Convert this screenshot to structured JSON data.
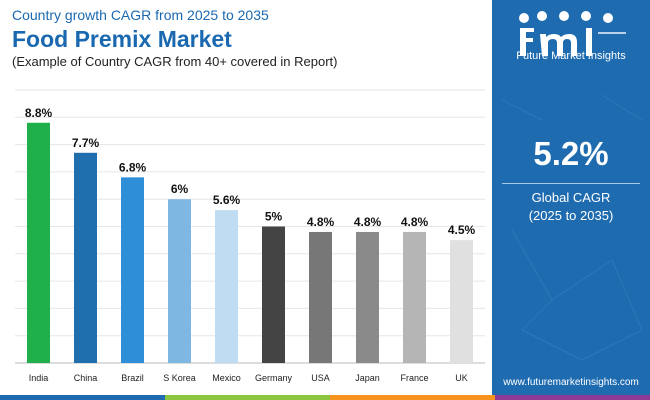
{
  "header": {
    "subtitle": "Country growth CAGR from 2025 to 2035",
    "title": "Food Premix Market",
    "caption": "(Example of Country CAGR from 40+ covered in Report)"
  },
  "chart_data": {
    "type": "bar",
    "categories": [
      "India",
      "China",
      "Brazil",
      "S Korea",
      "Mexico",
      "Germany",
      "USA",
      "Japan",
      "France",
      "UK"
    ],
    "values": [
      8.8,
      7.7,
      6.8,
      6,
      5.6,
      5,
      4.8,
      4.8,
      4.8,
      4.5
    ],
    "value_labels": [
      "8.8%",
      "7.7%",
      "6.8%",
      "6%",
      "5.6%",
      "5%",
      "4.8%",
      "4.8%",
      "4.8%",
      "4.5%"
    ],
    "bar_colors": [
      "#1fb04b",
      "#1f6fae",
      "#2f8ed8",
      "#7fb7e3",
      "#bfdcf3",
      "#444444",
      "#777777",
      "#8a8a8a",
      "#b5b5b5",
      "#e0e0e0"
    ],
    "ylim": [
      0,
      10
    ],
    "grid": true,
    "title": "Food Premix Market",
    "xlabel": "",
    "ylabel": ""
  },
  "side_panel": {
    "logo_text": "Future Market Insights",
    "cagr_value": "5.2%",
    "cagr_label_line1": "Global CAGR",
    "cagr_label_line2": "(2025 to 2035)",
    "website": "www.futuremarketinsights.com",
    "background_color": "#1e6bb0"
  },
  "stripe_colors": [
    "#1e6bb0",
    "#8cc63f",
    "#f7941d",
    "#8e3b96"
  ]
}
